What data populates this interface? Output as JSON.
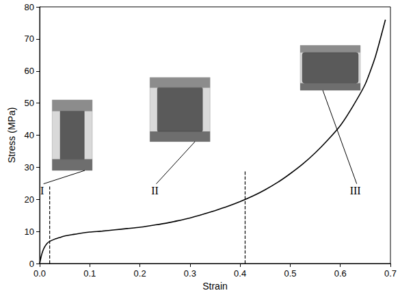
{
  "chart_data": {
    "type": "line",
    "x_label": "Strain",
    "y_label": "Stress (MPa)",
    "x": [
      0,
      0.003,
      0.006,
      0.01,
      0.015,
      0.02,
      0.03,
      0.04,
      0.05,
      0.065,
      0.08,
      0.1,
      0.125,
      0.15,
      0.175,
      0.2,
      0.225,
      0.25,
      0.275,
      0.3,
      0.325,
      0.35,
      0.375,
      0.4,
      0.425,
      0.45,
      0.475,
      0.5,
      0.525,
      0.55,
      0.575,
      0.6,
      0.625,
      0.65,
      0.67,
      0.69
    ],
    "values": [
      0,
      2.2,
      3.8,
      5.2,
      6.3,
      6.9,
      7.6,
      8.1,
      8.6,
      9.0,
      9.4,
      9.8,
      10.1,
      10.5,
      10.9,
      11.3,
      11.9,
      12.5,
      13.3,
      14.2,
      15.3,
      16.5,
      17.8,
      19.3,
      21.0,
      23.0,
      25.3,
      28.0,
      31.0,
      34.5,
      38.5,
      43.0,
      49.0,
      56.0,
      64.5,
      76.0
    ],
    "color": "#000000",
    "line_style": "solid",
    "xlim": [
      0,
      0.7
    ],
    "xticks": [
      {
        "value": 0,
        "label": "0.0"
      },
      0.1,
      0.2,
      0.3,
      0.4,
      0.5,
      0.6,
      0.7
    ],
    "ylim": [
      0,
      80
    ],
    "yticks": [
      0,
      10,
      20,
      30,
      40,
      50,
      60,
      70,
      80
    ],
    "grid": false,
    "reference_lines": [
      {
        "x": 0.02,
        "y": [
          0,
          24
        ],
        "line_style": "dashed"
      },
      {
        "x": 0.41,
        "y": [
          0,
          29
        ],
        "line_style": "dashed"
      }
    ],
    "annotations": [
      {
        "text": "I",
        "x": 0.005,
        "y": 21
      },
      {
        "text": "II",
        "x": 0.23,
        "y": 21
      },
      {
        "text": "III",
        "x": 0.63,
        "y": 21
      }
    ]
  }
}
